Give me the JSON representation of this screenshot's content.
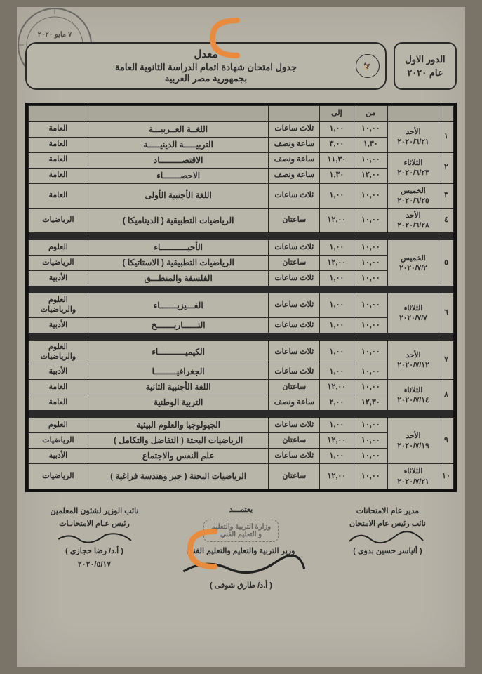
{
  "colors": {
    "page_bg": "#7a7468",
    "paper_bg": "#b6b2a6",
    "border": "#2a2a2a",
    "annotation": "#e98a3c"
  },
  "header": {
    "session_label_l1": "الدور الاول",
    "session_label_l2": "عام ٢٠٢٠",
    "title_l1": "معدل",
    "title_l2": "جدول امتحان شهادة اتمام الدراسة الثانوية العامة",
    "title_l3": "بجمهورية مصر العربية"
  },
  "table": {
    "headers": {
      "idx": "",
      "day": "",
      "from": "من",
      "to": "إلى",
      "duration": "",
      "subject": "",
      "track": ""
    },
    "groups": [
      {
        "rows": [
          {
            "idx": "١",
            "day": "الأحد\n٢٠٢٠/٦/٢١",
            "day_rowspan": 2,
            "from": "١٠,٠٠",
            "to": "١,٠٠",
            "duration": "ثلاث ساعات",
            "subject": "اللغــة العــربيـــة",
            "track": "العامة"
          },
          {
            "from": "١,٣٠",
            "to": "٣,٠٠",
            "duration": "ساعة ونصف",
            "subject": "التربيـــــة الدينيـــــة",
            "track": "العامة"
          },
          {
            "idx": "٢",
            "day": "الثلاثاء\n٢٠٢٠/٦/٢٣",
            "day_rowspan": 2,
            "from": "١٠,٠٠",
            "to": "١١,٣٠",
            "duration": "ساعة ونصف",
            "subject": "الاقتصـــــــــاد",
            "track": "العامة"
          },
          {
            "from": "١٢,٠٠",
            "to": "١,٣٠",
            "duration": "ساعة ونصف",
            "subject": "الاحصـــــــاء",
            "track": "العامة"
          },
          {
            "idx": "٣",
            "day": "الخميس\n٢٠٢٠/٦/٢٥",
            "day_rowspan": 1,
            "from": "١٠,٠٠",
            "to": "١,٠٠",
            "duration": "ثلاث ساعات",
            "subject": "اللغة الأجنبية الأولى",
            "track": "العامة"
          },
          {
            "idx": "٤",
            "day": "الأحد\n٢٠٢٠/٦/٢٨",
            "day_rowspan": 1,
            "from": "١٠,٠٠",
            "to": "١٢,٠٠",
            "duration": "ساعتان",
            "subject": "الرياضيات التطبيقية ( الديناميكا )",
            "track": "الرياضيات"
          }
        ]
      },
      {
        "rows": [
          {
            "idx": "٥",
            "day": "الخميس\n٢٠٢٠/٧/٢",
            "day_rowspan": 3,
            "from": "١٠,٠٠",
            "to": "١,٠٠",
            "duration": "ثلاث ساعات",
            "subject": "الأحيـــــــــــاء",
            "track": "العلوم"
          },
          {
            "from": "١٠,٠٠",
            "to": "١٢,٠٠",
            "duration": "ساعتان",
            "subject": "الرياضيات التطبيقية ( الاستاتيكا )",
            "track": "الرياضيات"
          },
          {
            "from": "١٠,٠٠",
            "to": "١,٠٠",
            "duration": "ثلاث ساعات",
            "subject": "الفلسفة والمنطـــق",
            "track": "الأدبية"
          }
        ]
      },
      {
        "rows": [
          {
            "idx": "٦",
            "day": "الثلاثاء\n٢٠٢٠/٧/٧",
            "day_rowspan": 2,
            "from": "١٠,٠٠",
            "to": "١,٠٠",
            "duration": "ثلاث ساعات",
            "subject": "الفـــيزيـــــــاء",
            "track": "العلوم\nوالرياضيات"
          },
          {
            "from": "١٠,٠٠",
            "to": "١,٠٠",
            "duration": "ثلاث ساعات",
            "subject": "التــــــاريـــــــخ",
            "track": "الأدبية"
          }
        ]
      },
      {
        "rows": [
          {
            "idx": "٧",
            "day": "الأحد\n٢٠٢٠/٧/١٢",
            "day_rowspan": 2,
            "from": "١٠,٠٠",
            "to": "١,٠٠",
            "duration": "ثلاث ساعات",
            "subject": "الكيميـــــــــــاء",
            "track": "العلوم\nوالرياضيات"
          },
          {
            "from": "١٠,٠٠",
            "to": "١,٠٠",
            "duration": "ثلاث ساعات",
            "subject": "الجغرافيـــــــــا",
            "track": "الأدبية"
          },
          {
            "idx": "٨",
            "day": "الثلاثاء\n٢٠٢٠/٧/١٤",
            "day_rowspan": 2,
            "from": "١٠,٠٠",
            "to": "١٢,٠٠",
            "duration": "ساعتان",
            "subject": "اللغة الأجنبية الثانية",
            "track": "العامة"
          },
          {
            "from": "١٢,٣٠",
            "to": "٢,٠٠",
            "duration": "ساعة ونصف",
            "subject": "التربية الوطنية",
            "track": "العامة"
          }
        ]
      },
      {
        "rows": [
          {
            "idx": "٩",
            "day": "الأحد\n٢٠٢٠/٧/١٩",
            "day_rowspan": 3,
            "from": "١٠,٠٠",
            "to": "١,٠٠",
            "duration": "ثلاث ساعات",
            "subject": "الجيولوجيا والعلوم البيئية",
            "track": "العلوم"
          },
          {
            "from": "١٠,٠٠",
            "to": "١٢,٠٠",
            "duration": "ساعتان",
            "subject": "الرياضيات البحتة ( التفاضل والتكامل )",
            "track": "الرياضيات"
          },
          {
            "from": "١٠,٠٠",
            "to": "١,٠٠",
            "duration": "ثلاث ساعات",
            "subject": "علم النفس والاجتماع",
            "track": "الأدبية"
          },
          {
            "idx": "١٠",
            "day": "الثلاثاء\n٢٠٢٠/٧/٢١",
            "day_rowspan": 1,
            "from": "١٠,٠٠",
            "to": "١٢,٠٠",
            "duration": "ساعتان",
            "subject": "الرياضيات البحتة ( جبر وهندسة فراغية )",
            "track": "الرياضيات"
          }
        ]
      }
    ]
  },
  "footer": {
    "right_l1": "مدير عام الامتحانات",
    "right_l2": "نائب رئيس عام الامتحان",
    "right_name": "( أ/ياسر حسين بدوى )",
    "center_l1": "يعتمـــد",
    "center_l2": "وزير التربية والتعليم والتعليم الفني",
    "center_name": "( أ.د/ طارق شوقى )",
    "left_l1": "نائب الوزير لشئون المعلمين",
    "left_l2": "رئيس عـام الامتحانـات",
    "left_name": "( أ.د/ رضا حجازى )",
    "left_date": "٢٠٢٠/٥/١٧",
    "stamp_l1": "وزارة التربية والتعليم",
    "stamp_l2": "و التعليم الفني"
  }
}
